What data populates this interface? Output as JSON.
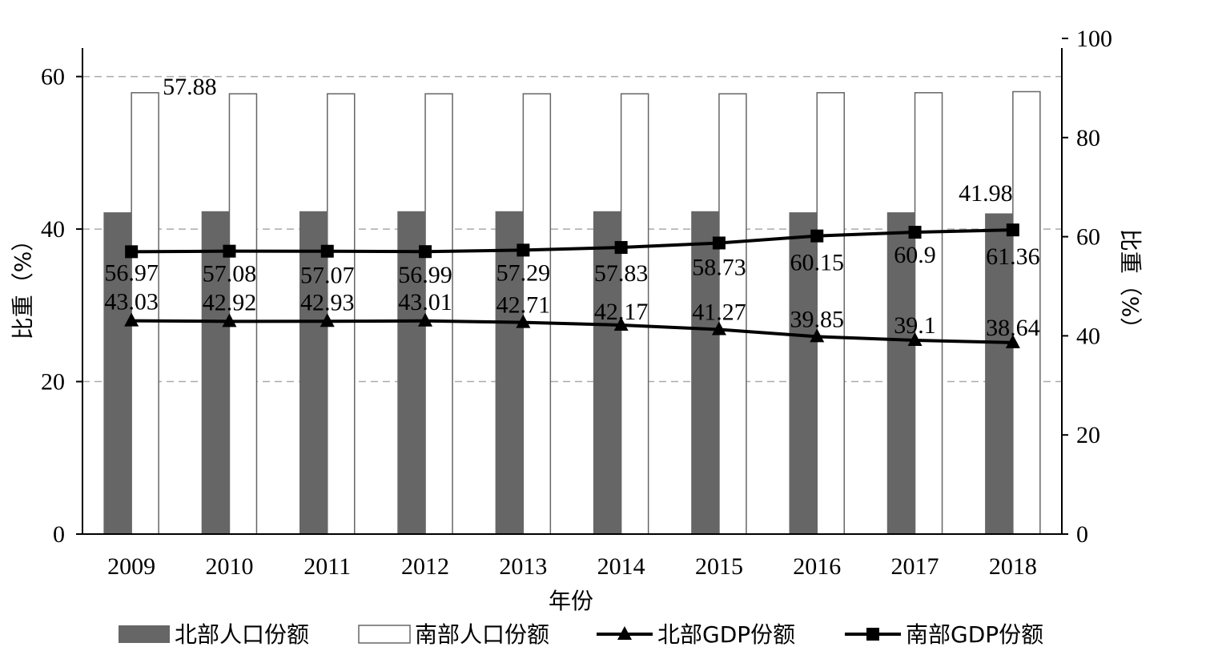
{
  "chart_data": {
    "type": "bar",
    "categories": [
      "2009",
      "2010",
      "2011",
      "2012",
      "2013",
      "2014",
      "2015",
      "2016",
      "2017",
      "2018"
    ],
    "xlabel": "年份",
    "ylabel": "比重（%）",
    "ylabel_right": "比重（%）",
    "ylim": [
      0,
      65
    ],
    "ylim_right": [
      0,
      100
    ],
    "yticks": [
      0,
      20,
      40,
      60
    ],
    "yticks_right": [
      0,
      20,
      40,
      60,
      80,
      100
    ],
    "grid": "horizontal dashed",
    "legend_position": "bottom",
    "series": [
      {
        "name": "北部人口份额",
        "type": "bar",
        "axis": "left",
        "color": "#666666",
        "values": [
          42.12,
          42.26,
          42.26,
          42.26,
          42.26,
          42.26,
          42.26,
          42.12,
          42.12,
          41.98
        ],
        "labels": [
          "",
          "",
          "",
          "",
          "",
          "",
          "",
          "",
          "",
          "41.98"
        ]
      },
      {
        "name": "南部人口份额",
        "type": "bar",
        "axis": "left",
        "color": "#ffffff",
        "values": [
          57.88,
          57.74,
          57.74,
          57.74,
          57.74,
          57.74,
          57.74,
          57.88,
          57.88,
          58.02
        ],
        "labels": [
          "57.88",
          "",
          "",
          "",
          "",
          "",
          "",
          "",
          "",
          ""
        ]
      },
      {
        "name": "北部GDP份额",
        "type": "line",
        "axis": "right",
        "marker": "triangle",
        "color": "#000000",
        "values": [
          43.03,
          42.92,
          42.93,
          43.01,
          42.71,
          42.17,
          41.27,
          39.85,
          39.1,
          38.64
        ],
        "labels": [
          "43.03",
          "42.92",
          "42.93",
          "43.01",
          "42.71",
          "42.17",
          "41.27",
          "39.85",
          "39.1",
          "38.64"
        ]
      },
      {
        "name": "南部GDP份额",
        "type": "line",
        "axis": "right",
        "marker": "square",
        "color": "#000000",
        "values": [
          56.97,
          57.08,
          57.07,
          56.99,
          57.29,
          57.83,
          58.73,
          60.15,
          60.9,
          61.36
        ],
        "labels": [
          "56.97",
          "57.08",
          "57.07",
          "56.99",
          "57.29",
          "57.83",
          "58.73",
          "60.15",
          "60.9",
          "61.36"
        ]
      }
    ]
  }
}
